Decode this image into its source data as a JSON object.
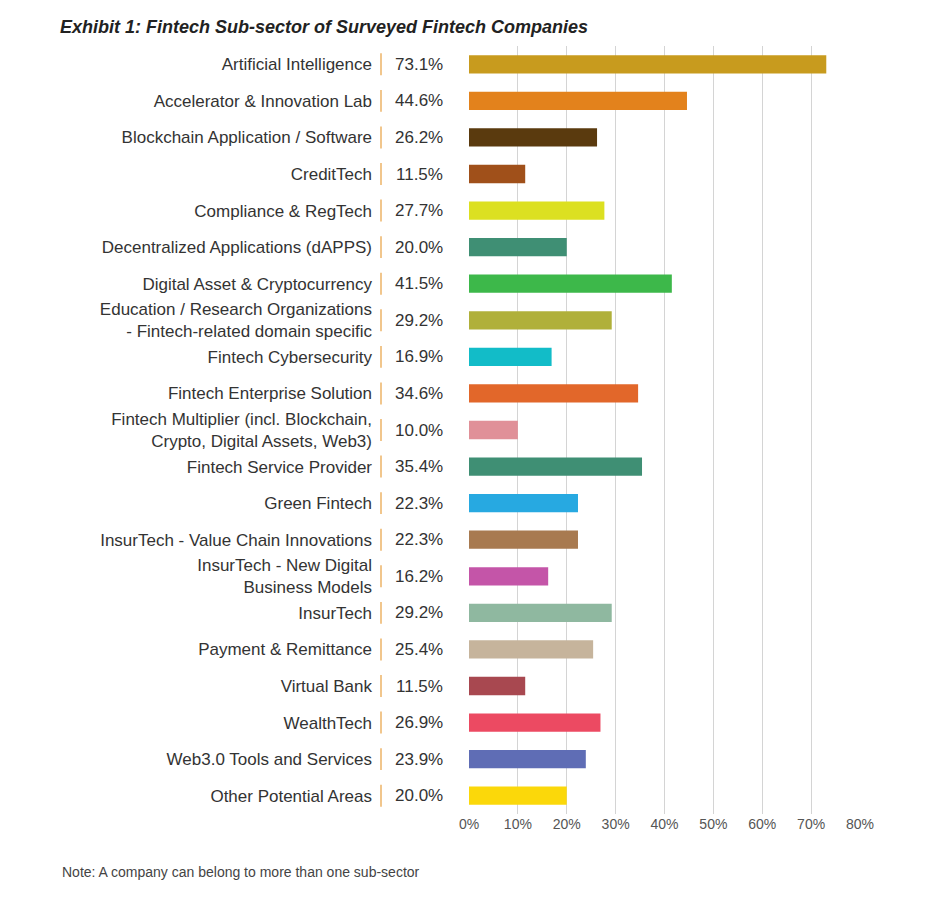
{
  "chart_data": {
    "type": "bar",
    "orientation": "horizontal",
    "title": "Exhibit 1: Fintech Sub-sector of Surveyed Fintech Companies",
    "note": "Note: A company can belong to more than one sub-sector",
    "categories": [
      "Artificial Intelligence",
      "Accelerator & Innovation Lab",
      "Blockchain Application / Software",
      "CreditTech",
      "Compliance & RegTech",
      "Decentralized Applications (dAPPS)",
      "Digital Asset & Cryptocurrency",
      "Education / Research Organizations\n- Fintech-related domain specific",
      "Fintech Cybersecurity",
      "Fintech Enterprise Solution",
      "Fintech Multiplier (incl. Blockchain,\nCrypto, Digital Assets, Web3)",
      "Fintech Service Provider",
      "Green Fintech",
      "InsurTech - Value Chain Innovations",
      "InsurTech - New Digital\nBusiness Models",
      "InsurTech",
      "Payment & Remittance",
      "Virtual Bank",
      "WealthTech",
      "Web3.0 Tools and Services",
      "Other Potential Areas"
    ],
    "values": [
      73.1,
      44.6,
      26.2,
      11.5,
      27.7,
      20.0,
      41.5,
      29.2,
      16.9,
      34.6,
      10.0,
      35.4,
      22.3,
      22.3,
      16.2,
      29.2,
      25.4,
      11.5,
      26.9,
      23.9,
      20.0
    ],
    "value_labels": [
      "73.1%",
      "44.6%",
      "26.2%",
      "11.5%",
      "27.7%",
      "20.0%",
      "41.5%",
      "29.2%",
      "16.9%",
      "34.6%",
      "10.0%",
      "35.4%",
      "22.3%",
      "22.3%",
      "16.2%",
      "29.2%",
      "25.4%",
      "11.5%",
      "26.9%",
      "23.9%",
      "20.0%"
    ],
    "data_labels": true,
    "colors": [
      "#c89b1e",
      "#e3821c",
      "#5a3a0e",
      "#a0501a",
      "#dce021",
      "#3f8f74",
      "#3db84a",
      "#b0b03a",
      "#12bcc8",
      "#e2672a",
      "#e09098",
      "#3f8f74",
      "#27a9e1",
      "#a87a50",
      "#c455a8",
      "#8fb8a0",
      "#c6b49c",
      "#a84850",
      "#ec4a62",
      "#5f6db5",
      "#fbd80a"
    ],
    "xlim": [
      0,
      80
    ],
    "xticks": [
      {
        "value": 0,
        "label": "0%"
      },
      {
        "value": 10,
        "label": "10%"
      },
      {
        "value": 20,
        "label": "20%"
      },
      {
        "value": 30,
        "label": "30%"
      },
      {
        "value": 40,
        "label": "40%"
      },
      {
        "value": 50,
        "label": "50%"
      },
      {
        "value": 60,
        "label": "60%"
      },
      {
        "value": 70,
        "label": "70%"
      },
      {
        "value": 80,
        "label": "80%"
      }
    ],
    "grid": true
  }
}
